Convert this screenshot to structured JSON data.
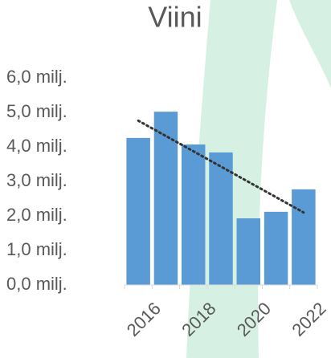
{
  "chart_data": {
    "type": "bar",
    "title": "Viini",
    "categories": [
      "2016",
      null,
      "2018",
      null,
      "2020",
      null,
      "2022"
    ],
    "values": [
      4.26,
      5.02,
      4.07,
      3.84,
      1.93,
      2.12,
      2.77
    ],
    "color": "#5b9bd5",
    "ylim": [
      0,
      6
    ],
    "yticks": [
      {
        "value": 0,
        "label": "0,0 milj."
      },
      {
        "value": 1,
        "label": "1,0 milj."
      },
      {
        "value": 2,
        "label": "2,0 milj."
      },
      {
        "value": 3,
        "label": "3,0 milj."
      },
      {
        "value": 4,
        "label": "4,0 milj."
      },
      {
        "value": 5,
        "label": "5,0 milj."
      },
      {
        "value": 6,
        "label": "6,0 milj."
      }
    ],
    "trendline": "linear"
  }
}
